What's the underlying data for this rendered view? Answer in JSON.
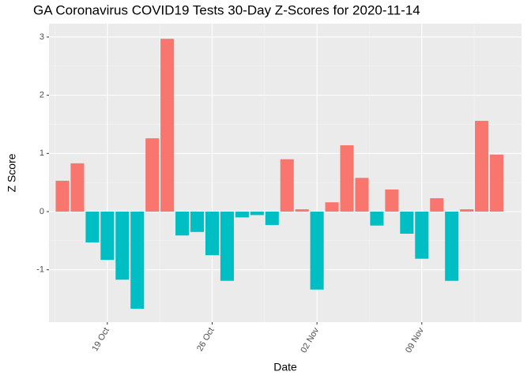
{
  "chart_data": {
    "type": "bar",
    "title": "GA Coronavirus COVID19 Tests 30-Day Z-Scores for 2020-11-14",
    "x_label": "Date",
    "y_label": "Z Score",
    "categories": [
      null,
      null,
      null,
      "19 Oct",
      null,
      null,
      null,
      null,
      null,
      null,
      "26 Oct",
      null,
      null,
      null,
      null,
      null,
      null,
      "02 Nov",
      null,
      null,
      null,
      null,
      null,
      null,
      "09 Nov",
      null,
      null,
      null,
      null,
      null
    ],
    "values": [
      0.53,
      0.83,
      -0.53,
      -0.83,
      -1.17,
      -1.67,
      1.26,
      2.97,
      -0.41,
      -0.35,
      -0.75,
      -1.19,
      -0.1,
      -0.06,
      -0.23,
      0.9,
      0.04,
      -1.34,
      0.16,
      1.14,
      0.58,
      -0.24,
      0.38,
      -0.38,
      -0.81,
      0.23,
      -1.19,
      0.04,
      1.56,
      0.98
    ],
    "colors": {
      "positive": "#f8766d",
      "negative": "#00bfc4"
    },
    "ylim": [
      -1.9,
      3.23
    ],
    "yticks": [
      -1,
      0,
      1,
      2,
      3
    ],
    "grid": true
  }
}
